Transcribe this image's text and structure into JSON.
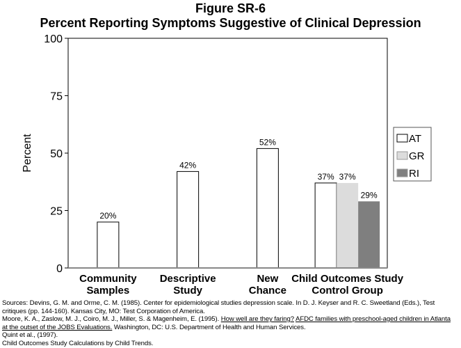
{
  "chart_data": {
    "type": "bar",
    "title": "Figure SR-6",
    "subtitle": "Percent Reporting Symptoms Suggestive of Clinical Depression",
    "ylabel": "Percent",
    "xlabel": "",
    "ylim": [
      0,
      100
    ],
    "yticks": [
      0,
      25,
      50,
      75,
      100
    ],
    "grid": false,
    "legend_placement": "right",
    "categories": [
      {
        "label": [
          "Community",
          "Samples"
        ],
        "bars": [
          {
            "value": 20,
            "label": "20%",
            "series": "single"
          }
        ]
      },
      {
        "label": [
          "Descriptive",
          "Study"
        ],
        "bars": [
          {
            "value": 42,
            "label": "42%",
            "series": "single"
          }
        ]
      },
      {
        "label": [
          "New",
          "Chance"
        ],
        "bars": [
          {
            "value": 52,
            "label": "52%",
            "series": "single"
          }
        ]
      },
      {
        "label": [
          "Child Outcomes Study",
          "Control Group"
        ],
        "bars": [
          {
            "value": 37,
            "label": "37%",
            "series": "AT"
          },
          {
            "value": 37,
            "label": "37%",
            "series": "GR"
          },
          {
            "value": 29,
            "label": "29%",
            "series": "RI"
          }
        ]
      }
    ],
    "series": [
      {
        "name": "AT",
        "color": "#ffffff"
      },
      {
        "name": "GR",
        "color": "#dcdcdc"
      },
      {
        "name": "RI",
        "color": "#7f7f7f"
      }
    ]
  },
  "sources": {
    "line1": "Sources:  Devins, G. M. and Orme, C. M. (1985).  Center for epidemiological studies depression scale.  In D. J. Keyser and R. C. Sweetland (Eds.), Test",
    "line2": "critiques (pp. 144-160). Kansas City, MO:  Test Corporation of America.",
    "line3a": "Moore, K. A., Zaslow, M. J., Coiro, M. J., Miller, S. & Magenheim, E. (1995).  ",
    "line3b": "How well are they faring?",
    "line3c": "  ",
    "line3d": "AFDC families with preschool-aged children in Atlanta",
    "line4a": "at the outset of the JOBS Evaluations.",
    "line4b": "  Washington, DC:  U.S. Department of Health and Human Services.",
    "line5": "Quint et al.,  (1997).",
    "line6": "Child Outcomes Study Calculations by Child Trends."
  }
}
